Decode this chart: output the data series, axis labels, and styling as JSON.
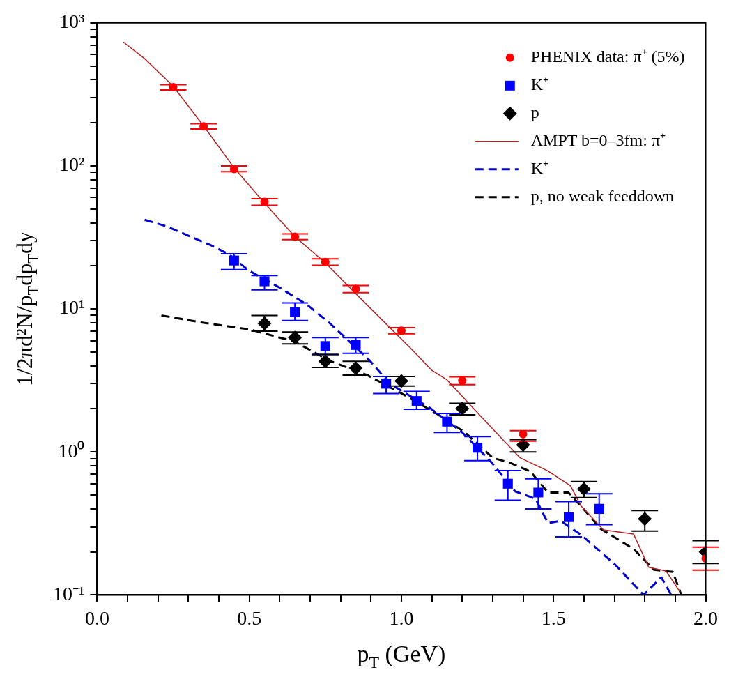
{
  "chart_data": {
    "type": "scatter",
    "xlabel": "p$_{T}$ (GeV)",
    "ylabel": "1/2πd²N/p$_{T}$dp$_{T}$dy",
    "log": "y",
    "grid": false,
    "legend": "top right",
    "xlim": [
      0,
      2
    ],
    "ylim": [
      0.1,
      1000
    ],
    "xticks": [
      {
        "value": 0,
        "label": "0.0"
      },
      {
        "value": 0.1,
        "label": null
      },
      {
        "value": 0.2,
        "label": null
      },
      {
        "value": 0.3,
        "label": null
      },
      {
        "value": 0.4,
        "label": null
      },
      {
        "value": 0.5,
        "label": "0.5"
      },
      {
        "value": 0.6,
        "label": null
      },
      {
        "value": 0.7,
        "label": null
      },
      {
        "value": 0.8,
        "label": null
      },
      {
        "value": 0.9,
        "label": null
      },
      {
        "value": 1,
        "label": "1.0"
      },
      {
        "value": 1.1,
        "label": null
      },
      {
        "value": 1.2,
        "label": null
      },
      {
        "value": 1.3,
        "label": null
      },
      {
        "value": 1.4,
        "label": null
      },
      {
        "value": 1.5,
        "label": "1.5"
      },
      {
        "value": 1.6,
        "label": null
      },
      {
        "value": 1.7,
        "label": null
      },
      {
        "value": 1.8,
        "label": null
      },
      {
        "value": 1.9,
        "label": null
      },
      {
        "value": 2,
        "label": "2.0"
      }
    ],
    "yticks": [
      {
        "value": 0.1,
        "label": "10⁻¹"
      },
      {
        "value": 0.2,
        "label": null
      },
      {
        "value": 0.3,
        "label": null
      },
      {
        "value": 0.4,
        "label": null
      },
      {
        "value": 0.5,
        "label": null
      },
      {
        "value": 0.6,
        "label": null
      },
      {
        "value": 0.7,
        "label": null
      },
      {
        "value": 0.8,
        "label": null
      },
      {
        "value": 0.9,
        "label": null
      },
      {
        "value": 1,
        "label": "10⁰"
      },
      {
        "value": 2,
        "label": null
      },
      {
        "value": 3,
        "label": null
      },
      {
        "value": 4,
        "label": null
      },
      {
        "value": 5,
        "label": null
      },
      {
        "value": 6,
        "label": null
      },
      {
        "value": 7,
        "label": null
      },
      {
        "value": 8,
        "label": null
      },
      {
        "value": 9,
        "label": null
      },
      {
        "value": 10,
        "label": "10¹"
      },
      {
        "value": 20,
        "label": null
      },
      {
        "value": 30,
        "label": null
      },
      {
        "value": 40,
        "label": null
      },
      {
        "value": 50,
        "label": null
      },
      {
        "value": 60,
        "label": null
      },
      {
        "value": 70,
        "label": null
      },
      {
        "value": 80,
        "label": null
      },
      {
        "value": 90,
        "label": null
      },
      {
        "value": 100,
        "label": "10²"
      },
      {
        "value": 200,
        "label": null
      },
      {
        "value": 300,
        "label": null
      },
      {
        "value": 400,
        "label": null
      },
      {
        "value": 500,
        "label": null
      },
      {
        "value": 600,
        "label": null
      },
      {
        "value": 700,
        "label": null
      },
      {
        "value": 800,
        "label": null
      },
      {
        "value": 900,
        "label": null
      },
      {
        "value": 1000,
        "label": "10³"
      }
    ],
    "series": [
      {
        "name": "PHENIX data: π⁺ (5%)",
        "marker": "circle",
        "color": "#ff0000",
        "x": [
          0.25,
          0.35,
          0.45,
          0.55,
          0.65,
          0.75,
          0.85,
          1.0,
          1.2,
          1.4,
          2.0
        ],
        "values": [
          355,
          189,
          95,
          56,
          32,
          21.3,
          13.8,
          7.05,
          3.15,
          1.33,
          0.18
        ],
        "errors": [
          [
            340,
            370
          ],
          [
            181,
            197
          ],
          [
            91,
            100
          ],
          [
            53,
            59
          ],
          [
            30.5,
            33.5
          ],
          [
            20.2,
            22.4
          ],
          [
            13.0,
            14.6
          ],
          [
            6.7,
            7.4
          ],
          [
            2.95,
            3.35
          ],
          [
            1.19,
            1.41
          ],
          [
            0.149,
            0.216
          ]
        ]
      },
      {
        "name": "K⁺",
        "marker": "square",
        "color": "#0000ff",
        "x": [
          0.45,
          0.55,
          0.65,
          0.75,
          0.85,
          0.95,
          1.05,
          1.15,
          1.25,
          1.35,
          1.45,
          1.55,
          1.65
        ],
        "values": [
          21.8,
          15.6,
          9.5,
          5.5,
          5.6,
          3.0,
          2.27,
          1.63,
          1.07,
          0.6,
          0.52,
          0.35,
          0.4
        ],
        "errors": [
          [
            18.8,
            24.3
          ],
          [
            13.6,
            17.1
          ],
          [
            8.3,
            11
          ],
          [
            4.8,
            6.3
          ],
          [
            4.9,
            6.3
          ],
          [
            2.56,
            3.37
          ],
          [
            1.99,
            2.65
          ],
          [
            1.37,
            1.86
          ],
          [
            0.87,
            1.28
          ],
          [
            0.46,
            0.74
          ],
          [
            0.4,
            0.65
          ],
          [
            0.255,
            0.45
          ],
          [
            0.31,
            0.51
          ]
        ]
      },
      {
        "name": "p",
        "marker": "diamond",
        "color": "#000000",
        "x": [
          0.55,
          0.65,
          0.75,
          0.85,
          1.0,
          1.2,
          1.4,
          1.6,
          1.8,
          2.0
        ],
        "values": [
          7.9,
          6.3,
          4.3,
          3.86,
          3.13,
          2.01,
          1.12,
          0.55,
          0.34,
          0.2
        ],
        "errors": [
          [
            7.0,
            9.0
          ],
          [
            5.7,
            6.9
          ],
          [
            3.9,
            4.8
          ],
          [
            3.45,
            4.3
          ],
          [
            2.89,
            3.37
          ],
          [
            1.82,
            2.19
          ],
          [
            1.0,
            1.22
          ],
          [
            0.48,
            0.62
          ],
          [
            0.28,
            0.39
          ],
          [
            0.166,
            0.24
          ]
        ]
      },
      {
        "name": "AMPT b=0–3fm: π⁺",
        "type": "line",
        "marker": "none",
        "line_style": "solid",
        "color": "#b22222",
        "x": [
          0.086,
          0.156,
          0.25,
          0.35,
          0.45,
          0.55,
          0.65,
          0.75,
          0.845,
          0.936,
          1.027,
          1.1,
          1.15,
          1.25,
          1.39,
          1.48,
          1.556,
          1.59,
          1.664,
          1.763,
          1.813,
          1.87,
          1.916
        ],
        "values": [
          735,
          562,
          360,
          190,
          97,
          55,
          32,
          21,
          13.1,
          8.4,
          5.4,
          3.72,
          3.19,
          1.88,
          0.91,
          0.74,
          0.58,
          0.42,
          0.285,
          0.267,
          0.156,
          0.147,
          0.105
        ]
      },
      {
        "name": "K⁺",
        "type": "line",
        "marker": "none",
        "line_style": "dashed",
        "color": "#0000cc",
        "x": [
          0.156,
          0.228,
          0.307,
          0.372,
          0.434,
          0.499,
          0.602,
          0.69,
          0.763,
          0.894,
          0.962,
          1.094,
          1.2,
          1.293,
          1.374,
          1.441,
          1.482,
          1.523,
          1.59,
          1.705,
          1.796,
          1.854,
          1.887
        ],
        "values": [
          42,
          37.8,
          32,
          28,
          24,
          18.5,
          14,
          10.7,
          8.0,
          4.4,
          3.0,
          2.03,
          1.37,
          0.86,
          0.53,
          0.47,
          0.318,
          0.33,
          0.264,
          0.161,
          0.1,
          0.133,
          0.1
        ]
      },
      {
        "name": "p, no weak feeddown",
        "type": "line",
        "marker": "none",
        "line_style": "dashed",
        "color": "#000000",
        "x": [
          0.211,
          0.35,
          0.5,
          0.65,
          0.763,
          0.887,
          1.01,
          1.118,
          1.209,
          1.3,
          1.357,
          1.424,
          1.482,
          1.549,
          1.59,
          1.655,
          1.763,
          1.83,
          1.892,
          1.92
        ],
        "values": [
          9.0,
          8.0,
          7.2,
          5.9,
          4.35,
          3.45,
          2.5,
          1.84,
          1.37,
          0.91,
          0.84,
          0.73,
          0.52,
          0.52,
          0.42,
          0.29,
          0.21,
          0.15,
          0.145,
          0.1
        ]
      }
    ]
  }
}
